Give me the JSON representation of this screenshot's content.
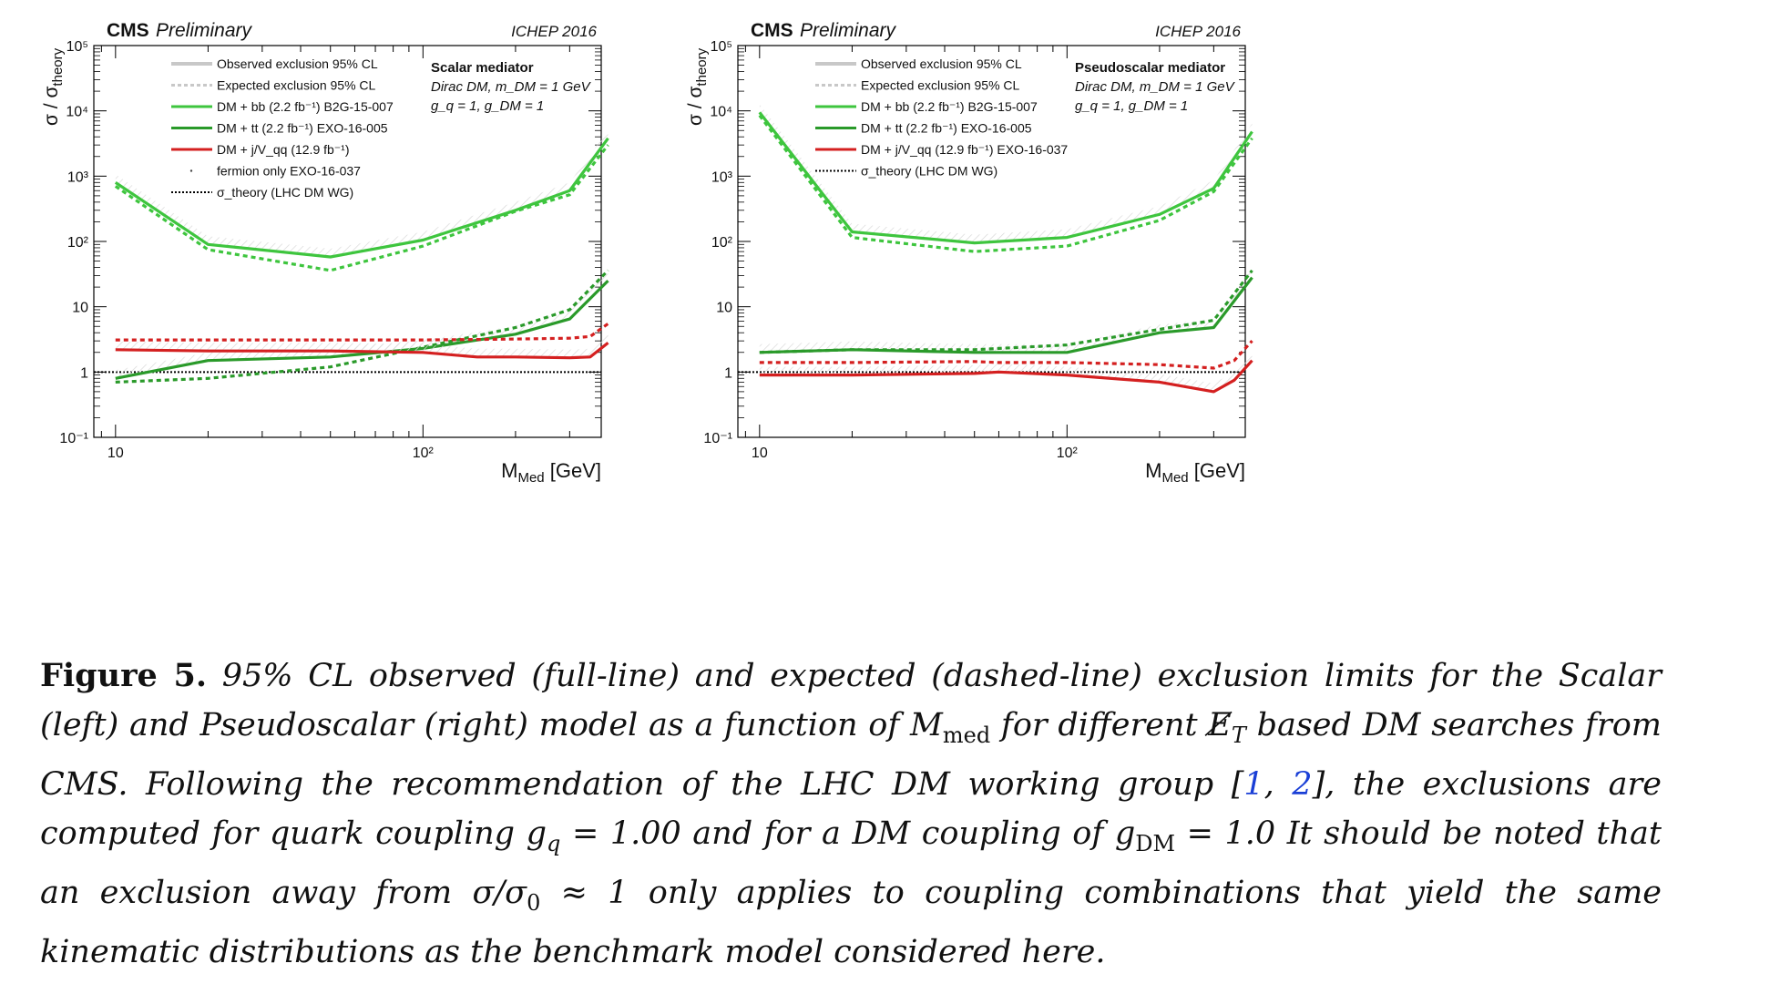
{
  "figure": {
    "panels": [
      {
        "id": "scalar",
        "experiment": "CMS",
        "status": "Preliminary",
        "conference": "ICHEP 2016",
        "ylabel": "σ / σ",
        "ylabel_sub": "theory",
        "xlabel": "M",
        "xlabel_sub": "Med",
        "xlabel_unit": "[GeV]",
        "info_lines": [
          "Scalar mediator",
          "Dirac DM, m_DM = 1 GeV",
          "g_q = 1, g_DM = 1"
        ],
        "legend": [
          {
            "label": "Observed exclusion 95% CL",
            "style": "obs-grey"
          },
          {
            "label": "Expected exclusion 95% CL",
            "style": "exp-grey"
          },
          {
            "label": "DM + bb (2.2 fb⁻¹) B2G-15-007",
            "style": "lightgreen"
          },
          {
            "label": "DM + tt (2.2 fb⁻¹) EXO-16-005",
            "style": "darkgreen"
          },
          {
            "label": "DM + j/V_qq (12.9 fb⁻¹)",
            "style": "red"
          },
          {
            "label": "fermion only EXO-16-037",
            "style": "dot"
          },
          {
            "label": "σ_theory (LHC DM WG)",
            "style": "theory"
          }
        ]
      },
      {
        "id": "pseudoscalar",
        "experiment": "CMS",
        "status": "Preliminary",
        "conference": "ICHEP 2016",
        "ylabel": "σ / σ",
        "ylabel_sub": "theory",
        "xlabel": "M",
        "xlabel_sub": "Med",
        "xlabel_unit": "[GeV]",
        "info_lines": [
          "Pseudoscalar mediator",
          "Dirac DM, m_DM = 1 GeV",
          "g_q = 1, g_DM = 1"
        ],
        "legend": [
          {
            "label": "Observed exclusion 95% CL",
            "style": "obs-grey"
          },
          {
            "label": "Expected exclusion 95% CL",
            "style": "exp-grey"
          },
          {
            "label": "DM + bb (2.2 fb⁻¹) B2G-15-007",
            "style": "lightgreen"
          },
          {
            "label": "DM + tt (2.2 fb⁻¹) EXO-16-005",
            "style": "darkgreen"
          },
          {
            "label": "DM + j/V_qq (12.9 fb⁻¹) EXO-16-037",
            "style": "red"
          },
          {
            "label": "σ_theory (LHC DM WG)",
            "style": "theory"
          }
        ]
      }
    ]
  },
  "chart_data": [
    {
      "type": "line",
      "panel": "scalar",
      "title": "CMS Preliminary",
      "xlabel": "M_Med [GeV]",
      "ylabel": "σ / σ_theory",
      "x_scale": "log",
      "y_scale": "log",
      "xlim": [
        8.5,
        380
      ],
      "ylim": [
        0.1,
        100000
      ],
      "x_ticks": [
        "10",
        "10²"
      ],
      "y_ticks": [
        "10⁻¹",
        "1",
        "10",
        "10²",
        "10³",
        "10⁴",
        "10⁵"
      ],
      "theory_line": 1,
      "series": [
        {
          "name": "DM + bb (2.2 fb⁻¹) B2G-15-007",
          "kind": "observed",
          "color": "#3ec53e",
          "x": [
            10,
            20,
            50,
            100,
            200,
            300,
            400
          ],
          "y": [
            800,
            90,
            58,
            105,
            300,
            600,
            3800
          ]
        },
        {
          "name": "DM + bb (2.2 fb⁻¹) B2G-15-007",
          "kind": "expected",
          "color": "#3ec53e",
          "x": [
            10,
            20,
            50,
            100,
            200,
            300,
            400
          ],
          "y": [
            700,
            75,
            36,
            85,
            290,
            520,
            3000
          ]
        },
        {
          "name": "DM + tt (2.2 fb⁻¹) EXO-16-005",
          "kind": "observed",
          "color": "#2a9a2a",
          "x": [
            10,
            20,
            50,
            100,
            200,
            300,
            400
          ],
          "y": [
            0.8,
            1.5,
            1.7,
            2.3,
            3.8,
            6.5,
            25
          ]
        },
        {
          "name": "DM + tt (2.2 fb⁻¹) EXO-16-005",
          "kind": "expected",
          "color": "#2a9a2a",
          "x": [
            10,
            20,
            50,
            100,
            200,
            300,
            400
          ],
          "y": [
            0.7,
            0.8,
            1.2,
            2.4,
            4.8,
            9,
            36
          ]
        },
        {
          "name": "DM + j/V_qq (12.9 fb⁻¹)",
          "kind": "observed",
          "color": "#d42020",
          "x": [
            10,
            20,
            50,
            100,
            150,
            200,
            300,
            350,
            400
          ],
          "y": [
            2.2,
            2.1,
            2.1,
            2.0,
            1.7,
            1.7,
            1.65,
            1.7,
            2.8
          ]
        },
        {
          "name": "DM + j/V_qq (12.9 fb⁻¹)",
          "kind": "expected",
          "color": "#d42020",
          "x": [
            10,
            20,
            50,
            100,
            150,
            200,
            300,
            350,
            400
          ],
          "y": [
            3.1,
            3.1,
            3.1,
            3.1,
            3.15,
            3.2,
            3.3,
            3.5,
            5.5
          ]
        }
      ]
    },
    {
      "type": "line",
      "panel": "pseudoscalar",
      "title": "CMS Preliminary",
      "xlabel": "M_Med [GeV]",
      "ylabel": "σ / σ_theory",
      "x_scale": "log",
      "y_scale": "log",
      "xlim": [
        8.5,
        380
      ],
      "ylim": [
        0.1,
        100000
      ],
      "x_ticks": [
        "10",
        "10²"
      ],
      "y_ticks": [
        "10⁻¹",
        "1",
        "10",
        "10²",
        "10³",
        "10⁴",
        "10⁵"
      ],
      "theory_line": 1,
      "series": [
        {
          "name": "DM + bb (2.2 fb⁻¹) B2G-15-007",
          "kind": "observed",
          "color": "#3ec53e",
          "x": [
            10,
            20,
            50,
            100,
            200,
            300,
            400
          ],
          "y": [
            9500,
            140,
            95,
            115,
            260,
            650,
            4800
          ]
        },
        {
          "name": "DM + bb (2.2 fb⁻¹) B2G-15-007",
          "kind": "expected",
          "color": "#3ec53e",
          "x": [
            10,
            20,
            50,
            100,
            200,
            300,
            400
          ],
          "y": [
            8500,
            115,
            70,
            85,
            210,
            580,
            3800
          ]
        },
        {
          "name": "DM + tt (2.2 fb⁻¹) EXO-16-005",
          "kind": "observed",
          "color": "#2a9a2a",
          "x": [
            10,
            20,
            50,
            100,
            200,
            300,
            400
          ],
          "y": [
            2.0,
            2.2,
            2.0,
            2.0,
            4.0,
            4.8,
            28
          ]
        },
        {
          "name": "DM + tt (2.2 fb⁻¹) EXO-16-005",
          "kind": "expected",
          "color": "#2a9a2a",
          "x": [
            10,
            20,
            50,
            100,
            200,
            300,
            400
          ],
          "y": [
            2.0,
            2.2,
            2.2,
            2.6,
            4.5,
            6.2,
            36
          ]
        },
        {
          "name": "DM + j/V_qq (12.9 fb⁻¹) EXO-16-037",
          "kind": "observed",
          "color": "#d42020",
          "x": [
            10,
            20,
            50,
            60,
            100,
            200,
            300,
            350,
            400
          ],
          "y": [
            0.9,
            0.9,
            0.95,
            1.0,
            0.9,
            0.7,
            0.5,
            0.75,
            1.5
          ]
        },
        {
          "name": "DM + j/V_qq (12.9 fb⁻¹) EXO-16-037",
          "kind": "expected",
          "color": "#d42020",
          "x": [
            10,
            20,
            50,
            60,
            100,
            200,
            300,
            350,
            400
          ],
          "y": [
            1.4,
            1.4,
            1.45,
            1.4,
            1.4,
            1.3,
            1.15,
            1.5,
            3.0
          ]
        }
      ]
    }
  ],
  "caption": {
    "label": "Figure 5",
    "text_1": "95% CL observed (full-line) and expected (dashed-line) exclusion limits for the Scalar (left) and Pseudoscalar (right) model as a function of M",
    "sub_med": "med",
    "text_2": "for different",
    "met_symbol": "E̸",
    "met_sub": "T",
    "text_3": "based DM searches from CMS. Following the recommendation of the LHC DM working group [",
    "cite_1": "1",
    "cite_sep": ", ",
    "cite_2": "2",
    "text_4": "], the exclusions are computed for quark coupling g",
    "sub_q": "q",
    "text_5": "= 1.00 and for a DM coupling of g",
    "sub_dm": "DM",
    "text_6": "= 1.0 It should be noted that an exclusion away from σ/σ",
    "sub_0": "0",
    "text_7": "≈ 1 only applies to coupling combinations that yield the same kinematic distributions as the benchmark model considered here."
  }
}
